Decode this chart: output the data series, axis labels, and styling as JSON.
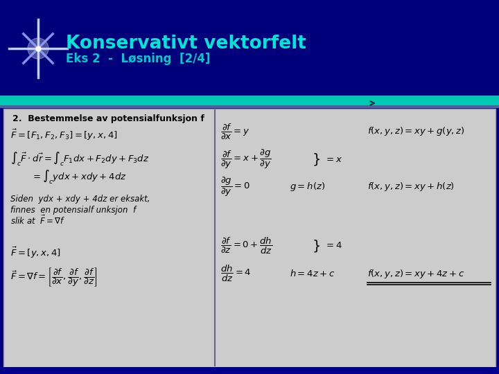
{
  "title": "Konservativt vektorfelt",
  "subtitle": "Eks 2  -  Løsning  [2/4]",
  "header_bg": "#000080",
  "title_color": "#00e5d5",
  "subtitle_color": "#00cccc",
  "teal_bar_color": "#00c8b4",
  "content_bg": "#d0d0d8",
  "content_border": "#8888aa",
  "section_title": "2.  Bestemmelse av potensialfunksjon f",
  "footer_bg": "#000080"
}
